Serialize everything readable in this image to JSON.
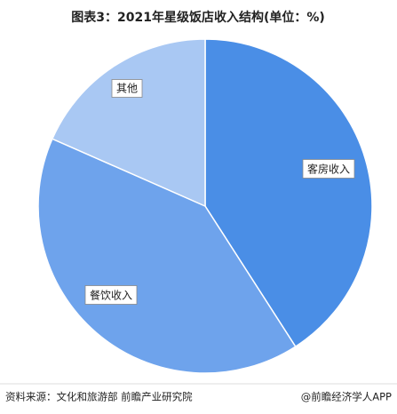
{
  "chart_data": {
    "type": "pie",
    "title": "图表3：2021年星级饭店收入结构(单位：%)",
    "categories": [
      "客房收入",
      "餐饮收入",
      "其他"
    ],
    "values": [
      40.9,
      40.7,
      18.4
    ],
    "colors": [
      "#4a8ee6",
      "#6ea3ec",
      "#a9c8f3"
    ],
    "source": "资料来源：文化和旅游部 前瞻产业研究院",
    "credit": "@前瞻经济学人APP"
  }
}
